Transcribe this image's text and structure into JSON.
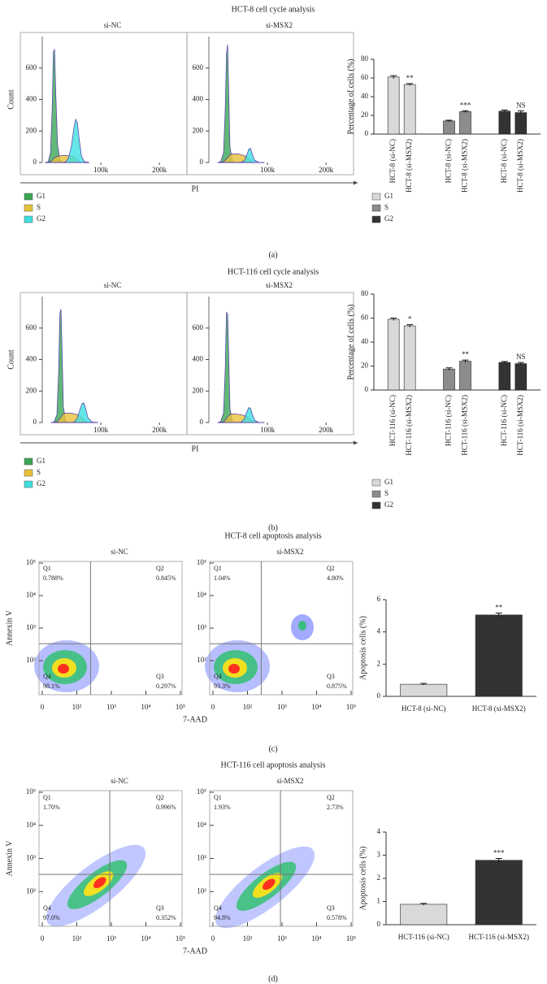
{
  "panels": [
    {
      "title": "HCT-8 cell cycle analysis",
      "label": "(a)"
    },
    {
      "title": "HCT-116 cell cycle analysis",
      "label": "(b)"
    },
    {
      "title": "HCT-8 cell apoptosis analysis",
      "label": "(c)"
    },
    {
      "title": "HCT-116 cell apoptosis analysis",
      "label": "(d)"
    }
  ],
  "chart_data": [
    {
      "type": "area",
      "title": "si-NC",
      "ylabel": "Count",
      "xlabel": "PI",
      "x": [
        5000,
        10000,
        14000,
        17000,
        19000,
        21000,
        23000,
        26000,
        30000,
        35000,
        40000,
        45000,
        50000,
        54000,
        57000,
        60000,
        63000,
        67000,
        72000,
        80000
      ],
      "xlim": [
        0,
        240000
      ],
      "ylim": [
        0,
        800
      ],
      "yticks": [
        0,
        200,
        400,
        600
      ],
      "xticks": [
        {
          "value": 100000,
          "label": "100k"
        },
        {
          "value": 200000,
          "label": "200k"
        }
      ],
      "series": [
        {
          "name": "G1",
          "color": "#3aa655",
          "values": [
            0,
            5,
            60,
            350,
            700,
            720,
            450,
            120,
            15,
            2,
            0,
            0,
            0,
            0,
            0,
            0,
            0,
            0,
            0,
            0
          ]
        },
        {
          "name": "S",
          "color": "#e8c23a",
          "values": [
            0,
            0,
            5,
            15,
            25,
            30,
            35,
            40,
            42,
            45,
            45,
            42,
            40,
            35,
            25,
            15,
            5,
            0,
            0,
            0
          ]
        },
        {
          "name": "G2",
          "color": "#40e0e0",
          "values": [
            0,
            0,
            0,
            0,
            0,
            0,
            0,
            0,
            0,
            0,
            5,
            30,
            110,
            220,
            275,
            250,
            150,
            40,
            5,
            0
          ]
        }
      ]
    },
    {
      "type": "area",
      "title": "si-MSX2",
      "x": [
        15000,
        20000,
        25000,
        28000,
        30000,
        32000,
        34000,
        36000,
        40000,
        45000,
        50000,
        55000,
        60000,
        65000,
        68000,
        71000,
        74000,
        78000,
        85000,
        95000
      ],
      "xlim": [
        0,
        240000
      ],
      "ylim": [
        0,
        800
      ],
      "yticks": [
        0,
        200,
        400,
        600
      ],
      "xticks": [
        {
          "value": 100000,
          "label": "100k"
        },
        {
          "value": 200000,
          "label": "200k"
        }
      ],
      "series": [
        {
          "color": "#3aa655",
          "values": [
            0,
            5,
            60,
            350,
            690,
            750,
            420,
            100,
            10,
            0,
            0,
            0,
            0,
            0,
            0,
            0,
            0,
            0,
            0,
            0
          ]
        },
        {
          "color": "#e8c23a",
          "values": [
            0,
            0,
            5,
            15,
            25,
            30,
            40,
            50,
            55,
            55,
            55,
            50,
            45,
            35,
            25,
            15,
            5,
            0,
            0,
            0
          ]
        },
        {
          "color": "#40e0e0",
          "values": [
            0,
            0,
            0,
            0,
            0,
            0,
            0,
            0,
            0,
            0,
            0,
            2,
            10,
            50,
            85,
            90,
            55,
            15,
            1,
            0
          ]
        }
      ]
    },
    {
      "type": "bar",
      "ylabel": "Percentage of cells (%)",
      "categories": [
        "HCT-8 (si-NC)",
        "HCT-8 (si-MSX2)"
      ],
      "ylim": [
        0,
        80
      ],
      "yticks": [
        0,
        20,
        40,
        60,
        80
      ],
      "series": [
        {
          "name": "G1",
          "color": "#d9d9d9",
          "values": [
            61,
            53
          ],
          "errors": [
            1.5,
            1
          ],
          "annotations": [
            null,
            "**"
          ]
        },
        {
          "name": "S",
          "color": "#8c8c8c",
          "values": [
            14,
            24
          ],
          "errors": [
            0.8,
            1
          ],
          "annotations": [
            null,
            "***"
          ]
        },
        {
          "name": "G2",
          "color": "#333333",
          "values": [
            24.5,
            23
          ],
          "errors": [
            1.2,
            1.8
          ],
          "annotations": [
            null,
            "NS"
          ]
        }
      ]
    },
    {
      "type": "area",
      "title": "si-NC",
      "ylabel": "Count",
      "xlabel": "PI",
      "x": [
        15000,
        20000,
        25000,
        28000,
        30000,
        32000,
        34000,
        36000,
        40000,
        45000,
        50000,
        55000,
        60000,
        65000,
        68000,
        71000,
        74000,
        78000,
        85000,
        95000
      ],
      "xlim": [
        0,
        240000
      ],
      "ylim": [
        0,
        800
      ],
      "yticks": [
        0,
        200,
        400,
        600
      ],
      "xticks": [
        {
          "value": 100000,
          "label": "100k"
        },
        {
          "value": 200000,
          "label": "200k"
        }
      ],
      "series": [
        {
          "name": "G1",
          "color": "#3aa655",
          "values": [
            0,
            3,
            50,
            330,
            690,
            720,
            430,
            100,
            10,
            0,
            0,
            0,
            0,
            0,
            0,
            0,
            0,
            0,
            0,
            0
          ]
        },
        {
          "name": "S",
          "color": "#e8c23a",
          "values": [
            0,
            0,
            5,
            15,
            25,
            35,
            45,
            55,
            60,
            60,
            58,
            55,
            50,
            40,
            30,
            20,
            8,
            2,
            0,
            0
          ]
        },
        {
          "name": "G2",
          "color": "#40e0e0",
          "values": [
            0,
            0,
            0,
            0,
            0,
            0,
            0,
            0,
            0,
            0,
            0,
            5,
            30,
            90,
            120,
            125,
            90,
            30,
            3,
            0
          ]
        }
      ]
    },
    {
      "type": "area",
      "title": "si-MSX2",
      "x": [
        15000,
        20000,
        25000,
        28000,
        30000,
        32000,
        34000,
        36000,
        40000,
        45000,
        50000,
        55000,
        60000,
        65000,
        68000,
        71000,
        74000,
        78000,
        85000,
        95000
      ],
      "xlim": [
        0,
        240000
      ],
      "ylim": [
        0,
        800
      ],
      "yticks": [
        0,
        200,
        400,
        600
      ],
      "xticks": [
        {
          "value": 100000,
          "label": "100k"
        },
        {
          "value": 200000,
          "label": "200k"
        }
      ],
      "series": [
        {
          "color": "#3aa655",
          "values": [
            0,
            5,
            60,
            350,
            700,
            690,
            400,
            90,
            8,
            0,
            0,
            0,
            0,
            0,
            0,
            0,
            0,
            0,
            0,
            0
          ]
        },
        {
          "color": "#e8c23a",
          "values": [
            0,
            0,
            5,
            15,
            25,
            35,
            45,
            50,
            55,
            55,
            52,
            50,
            45,
            35,
            25,
            15,
            6,
            1,
            0,
            0
          ]
        },
        {
          "color": "#40e0e0",
          "values": [
            0,
            0,
            0,
            0,
            0,
            0,
            0,
            0,
            0,
            0,
            0,
            3,
            20,
            70,
            95,
            90,
            55,
            15,
            1,
            0
          ]
        }
      ]
    },
    {
      "type": "bar",
      "ylabel": "Percentage of cells (%)",
      "categories": [
        "HCT-116 (si-NC)",
        "HCT-116 (si-MSX2)"
      ],
      "ylim": [
        0,
        80
      ],
      "yticks": [
        0,
        20,
        40,
        60,
        80
      ],
      "series": [
        {
          "name": "G1",
          "color": "#d9d9d9",
          "values": [
            59,
            53.5
          ],
          "errors": [
            1,
            1
          ],
          "annotations": [
            null,
            "*"
          ]
        },
        {
          "name": "S",
          "color": "#8c8c8c",
          "values": [
            17.5,
            24
          ],
          "errors": [
            1,
            1
          ],
          "annotations": [
            null,
            "**"
          ]
        },
        {
          "name": "G2",
          "color": "#333333",
          "values": [
            23,
            22
          ],
          "errors": [
            0.8,
            1
          ],
          "annotations": [
            null,
            "NS"
          ]
        }
      ]
    },
    {
      "type": "scatter",
      "title": "si-NC",
      "ylabel": "Annexin V",
      "xlabel": "7-AAD",
      "xscale": "biexponential",
      "xlim": [
        0,
        100000
      ],
      "ylim": [
        0,
        100000
      ],
      "xticks": [
        0,
        {
          "value": 100,
          "label": "10²"
        },
        {
          "value": 1000,
          "label": "10³"
        },
        {
          "value": 10000,
          "label": "10⁴"
        },
        {
          "value": 100000,
          "label": "10⁵"
        }
      ],
      "yticks": [
        {
          "value": 100,
          "label": "10²"
        },
        {
          "value": 1000,
          "label": "10³"
        },
        {
          "value": 10000,
          "label": "10⁴"
        },
        {
          "value": 100000,
          "label": "10⁵"
        }
      ],
      "gate": {
        "x": 250,
        "y": 330
      },
      "quadrants": {
        "names": [
          "Q1",
          "Q2",
          "Q3",
          "Q4"
        ],
        "values": [
          0.788,
          0.845,
          0.297,
          98.1
        ],
        "value_labels": [
          "0.788%",
          "0.845%",
          "0.297%",
          "98.1%"
        ]
      }
    },
    {
      "type": "scatter",
      "title": "si-MSX2",
      "xscale": "biexponential",
      "xlim": [
        0,
        100000
      ],
      "ylim": [
        0,
        100000
      ],
      "xticks": [
        0,
        {
          "value": 100,
          "label": "10²"
        },
        {
          "value": 1000,
          "label": "10³"
        },
        {
          "value": 10000,
          "label": "10⁴"
        },
        {
          "value": 100000,
          "label": "10⁵"
        }
      ],
      "yticks": [
        {
          "value": 100,
          "label": "10²"
        },
        {
          "value": 1000,
          "label": "10³"
        },
        {
          "value": 10000,
          "label": "10⁴"
        },
        {
          "value": 100000,
          "label": "10⁵"
        }
      ],
      "gate": {
        "x": 250,
        "y": 330
      },
      "quadrants": {
        "names": [
          "Q1",
          "Q2",
          "Q3",
          "Q4"
        ],
        "values": [
          1.04,
          4.8,
          0.875,
          93.3
        ],
        "value_labels": [
          "1.04%",
          "4.80%",
          "0.875%",
          "93.3%"
        ]
      }
    },
    {
      "type": "bar",
      "ylabel": "Apoptosis cells (%)",
      "categories": [
        "HCT-8 (si-NC)",
        "HCT-8 (si-MSX2)"
      ],
      "values": [
        0.75,
        5.05
      ],
      "errors": [
        0.05,
        0.12
      ],
      "colors": [
        "#d9d9d9",
        "#333333"
      ],
      "annotations": [
        null,
        "**"
      ],
      "ylim": [
        0,
        6
      ],
      "yticks": [
        0,
        2,
        4,
        6
      ]
    },
    {
      "type": "scatter",
      "title": "si-NC",
      "ylabel": "Annexin V",
      "xlabel": "7-AAD",
      "xscale": "biexponential",
      "xlim": [
        0,
        100000
      ],
      "ylim": [
        0,
        100000
      ],
      "xticks": [
        0,
        {
          "value": 100,
          "label": "10²"
        },
        {
          "value": 1000,
          "label": "10³"
        },
        {
          "value": 10000,
          "label": "10⁴"
        },
        {
          "value": 100000,
          "label": "10⁵"
        }
      ],
      "yticks": [
        {
          "value": 100,
          "label": "10²"
        },
        {
          "value": 1000,
          "label": "10³"
        },
        {
          "value": 10000,
          "label": "10⁴"
        },
        {
          "value": 100000,
          "label": "10⁵"
        }
      ],
      "gate": {
        "x": 900,
        "y": 330
      },
      "quadrants": {
        "names": [
          "Q1",
          "Q2",
          "Q3",
          "Q4"
        ],
        "values": [
          1.7,
          0.996,
          0.352,
          97.0
        ],
        "value_labels": [
          "1.70%",
          "0.996%",
          "0.352%",
          "97.0%"
        ]
      }
    },
    {
      "type": "scatter",
      "title": "si-MSX2",
      "xscale": "biexponential",
      "xlim": [
        0,
        100000
      ],
      "ylim": [
        0,
        100000
      ],
      "xticks": [
        0,
        {
          "value": 100,
          "label": "10²"
        },
        {
          "value": 1000,
          "label": "10³"
        },
        {
          "value": 10000,
          "label": "10⁴"
        },
        {
          "value": 100000,
          "label": "10⁵"
        }
      ],
      "yticks": [
        {
          "value": 100,
          "label": "10²"
        },
        {
          "value": 1000,
          "label": "10³"
        },
        {
          "value": 10000,
          "label": "10⁴"
        },
        {
          "value": 100000,
          "label": "10⁵"
        }
      ],
      "gate": {
        "x": 900,
        "y": 330
      },
      "quadrants": {
        "names": [
          "Q1",
          "Q2",
          "Q3",
          "Q4"
        ],
        "values": [
          1.93,
          2.73,
          0.578,
          94.8
        ],
        "value_labels": [
          "1.93%",
          "2.73%",
          "0.578%",
          "94.8%"
        ]
      }
    },
    {
      "type": "bar",
      "ylabel": "Apoptosis cells (%)",
      "categories": [
        "HCT-116 (si-NC)",
        "HCT-116 (si-MSX2)"
      ],
      "values": [
        0.88,
        2.78
      ],
      "errors": [
        0.04,
        0.08
      ],
      "colors": [
        "#d9d9d9",
        "#333333"
      ],
      "annotations": [
        null,
        "***"
      ],
      "ylim": [
        0,
        4
      ],
      "yticks": [
        0,
        1,
        2,
        3,
        4
      ]
    }
  ]
}
